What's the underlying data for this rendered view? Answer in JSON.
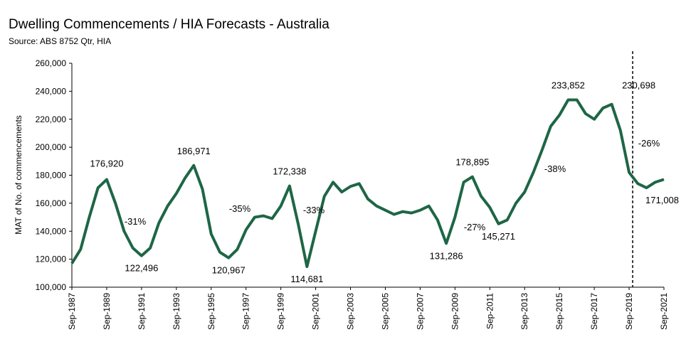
{
  "chart_data": {
    "type": "line",
    "title": "Dwelling Commencements / HIA Forecasts - Australia",
    "subtitle": "Source: ABS 8752 Qtr, HIA",
    "y_label": "MAT of No. of commencements",
    "categories": [
      "Sep-1987",
      null,
      null,
      null,
      "Sep-1989",
      null,
      null,
      null,
      "Sep-1991",
      null,
      null,
      null,
      "Sep-1993",
      null,
      null,
      null,
      "Sep-1995",
      null,
      null,
      null,
      "Sep-1997",
      null,
      null,
      null,
      "Sep-1999",
      null,
      null,
      null,
      "Sep-2001",
      null,
      null,
      null,
      "Sep-2003",
      null,
      null,
      null,
      "Sep-2005",
      null,
      null,
      null,
      "Sep-2007",
      null,
      null,
      null,
      "Sep-2009",
      null,
      null,
      null,
      "Sep-2011",
      null,
      null,
      null,
      "Sep-2013",
      null,
      null,
      null,
      "Sep-2015",
      null,
      null,
      null,
      "Sep-2017",
      null,
      null,
      null,
      "Sep-2019",
      null,
      null,
      null,
      "Sep-2021"
    ],
    "series": [
      {
        "name": "Dwelling commencements",
        "color": "#1e6646",
        "values": [
          117000,
          127000,
          150000,
          171000,
          176920,
          160000,
          140000,
          128000,
          122496,
          128000,
          146000,
          158000,
          167000,
          178000,
          186971,
          170000,
          138000,
          125000,
          120967,
          127000,
          141000,
          150000,
          151000,
          149000,
          158000,
          172338,
          145000,
          114681,
          140000,
          165000,
          175000,
          168000,
          172000,
          174000,
          163000,
          158000,
          155000,
          152000,
          154000,
          153000,
          155000,
          158000,
          148000,
          131286,
          150000,
          175000,
          178895,
          165000,
          157000,
          145271,
          148000,
          160000,
          168000,
          182000,
          198000,
          215000,
          223000,
          233852,
          233852,
          224000,
          220000,
          228000,
          230698,
          212000,
          182000,
          174000,
          171008,
          175000,
          177000
        ],
        "value_labels": [
          null,
          null,
          null,
          null,
          "176,920",
          null,
          null,
          null,
          "122,496",
          null,
          null,
          null,
          null,
          null,
          "186,971",
          null,
          null,
          null,
          "120,967",
          null,
          null,
          null,
          null,
          null,
          null,
          "172,338",
          null,
          "114,681",
          null,
          null,
          null,
          null,
          null,
          null,
          null,
          null,
          null,
          null,
          null,
          null,
          null,
          null,
          null,
          "131,286",
          null,
          null,
          "178,895",
          null,
          null,
          "145,271",
          null,
          null,
          null,
          null,
          null,
          null,
          null,
          "233,852",
          null,
          null,
          null,
          null,
          "230,698",
          null,
          null,
          null,
          "171,008",
          null,
          null
        ]
      }
    ],
    "annotations": [
      "-31%",
      "-35%",
      "-33%",
      "-27%",
      "-38%",
      "-26%"
    ],
    "ylim": [
      100000,
      260000
    ],
    "yticks": [
      {
        "value": 100000,
        "label": "100,000"
      },
      {
        "value": 120000,
        "label": "120,000"
      },
      {
        "value": 140000,
        "label": "140,000"
      },
      {
        "value": 160000,
        "label": "160,000"
      },
      {
        "value": 180000,
        "label": "180,000"
      },
      {
        "value": 200000,
        "label": "200,000"
      },
      {
        "value": 220000,
        "label": "220,000"
      },
      {
        "value": 240000,
        "label": "240,000"
      },
      {
        "value": 260000,
        "label": "260,000"
      }
    ],
    "grid": false
  }
}
